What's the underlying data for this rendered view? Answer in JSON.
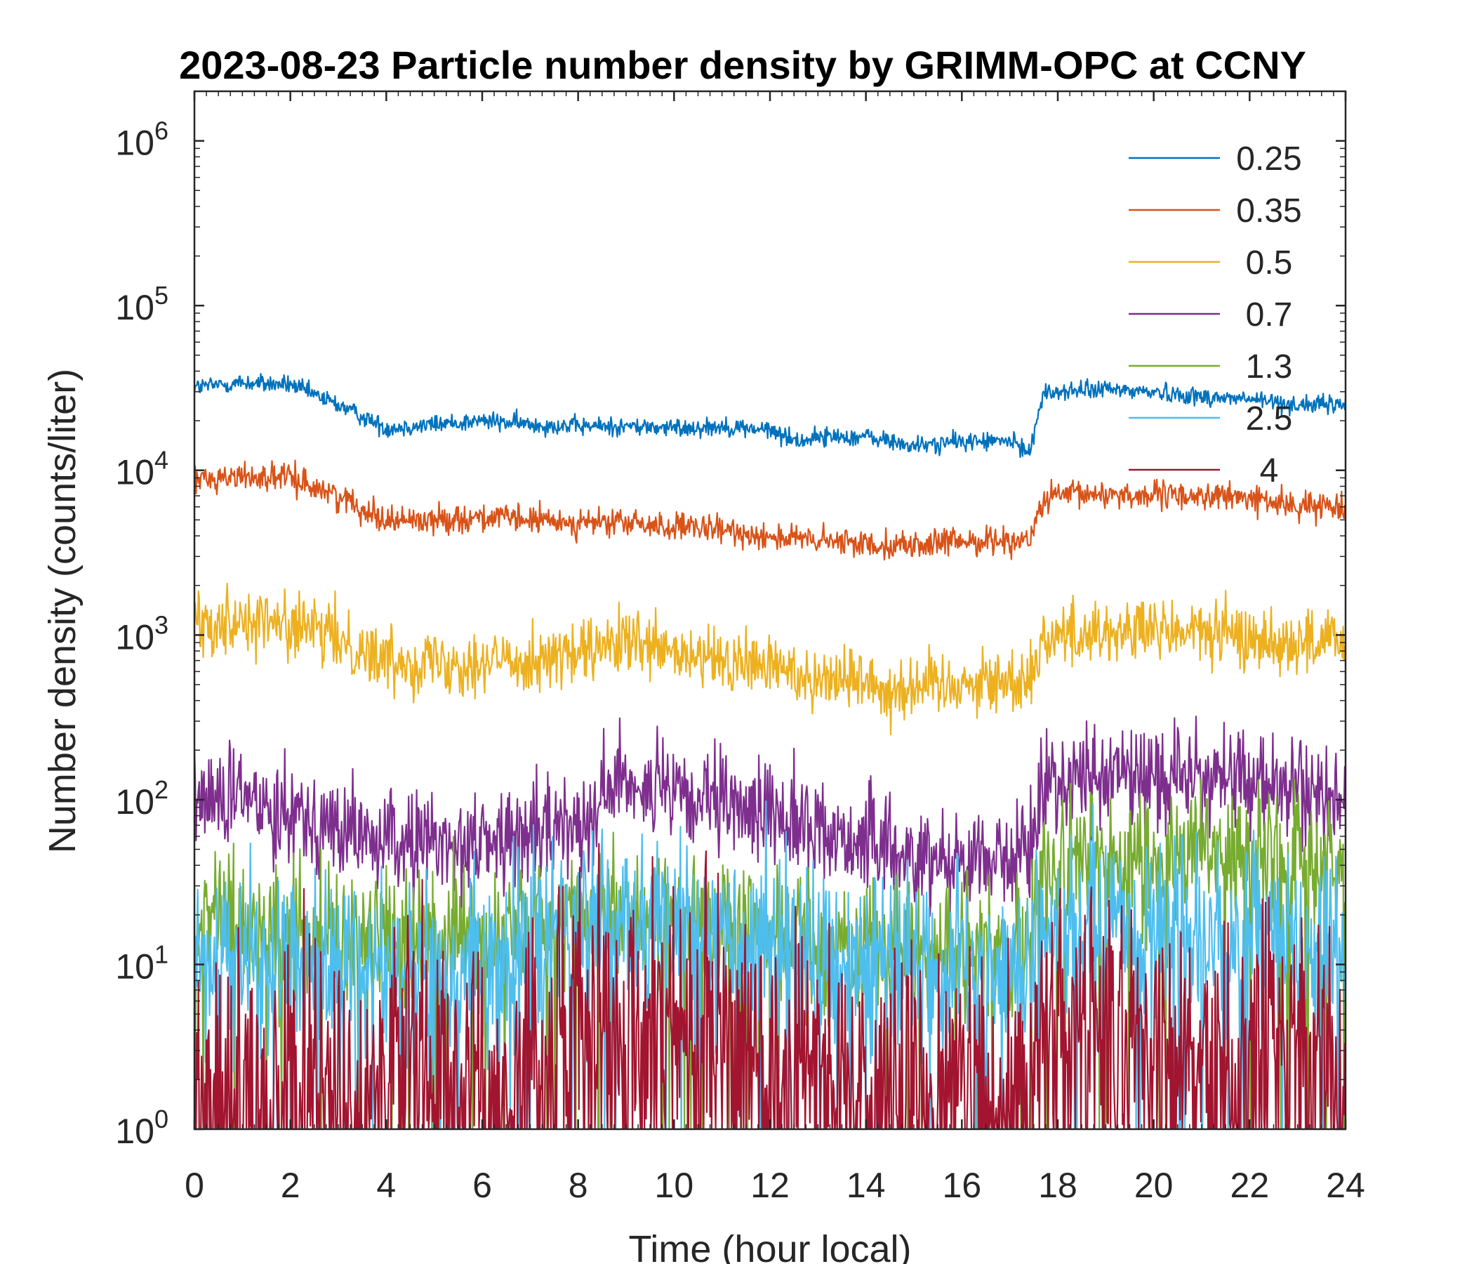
{
  "chart_data": {
    "type": "line",
    "title": "2023-08-23 Particle number density by GRIMM-OPC at CCNY",
    "xlabel": "Time (hour local)",
    "ylabel": "Number density (counts/liter)",
    "xlim": [
      0,
      24
    ],
    "ylim": [
      1,
      2000000
    ],
    "yscale": "log",
    "xticks": [
      0,
      2,
      4,
      6,
      8,
      10,
      12,
      14,
      16,
      18,
      20,
      22,
      24
    ],
    "xtick_labels": [
      "0",
      "2",
      "4",
      "6",
      "8",
      "10",
      "12",
      "14",
      "16",
      "18",
      "20",
      "22",
      "24"
    ],
    "yticks": [
      1,
      10,
      100,
      1000,
      10000,
      100000,
      1000000
    ],
    "ytick_exponents": [
      "0",
      "1",
      "2",
      "3",
      "4",
      "5",
      "6"
    ],
    "ytick_base": "10",
    "legend_position": "top-right",
    "series": [
      {
        "name": "0.25",
        "color": "#0072BD",
        "x": [
          0,
          1,
          2,
          3,
          4,
          5,
          6,
          7,
          8,
          9,
          10,
          11,
          12,
          12.6,
          13,
          14,
          15,
          16,
          17,
          17.4,
          17.7,
          18,
          19,
          20,
          21,
          22,
          23,
          24
        ],
        "values": [
          32000,
          34000,
          33000,
          25000,
          18000,
          19000,
          20000,
          19000,
          18500,
          18500,
          18000,
          18500,
          17500,
          15000,
          16000,
          16000,
          14000,
          15000,
          15000,
          13000,
          29000,
          30000,
          31000,
          30000,
          28000,
          27000,
          25000,
          25000
        ],
        "noise": 0.04
      },
      {
        "name": "0.35",
        "color": "#D95319",
        "x": [
          0,
          1,
          2,
          3,
          4,
          5,
          6,
          7,
          8,
          9,
          10,
          11,
          12,
          13,
          14,
          15,
          16,
          17,
          17.4,
          17.7,
          18,
          19,
          20,
          21,
          22,
          23,
          24
        ],
        "values": [
          8800,
          9200,
          9000,
          7000,
          5000,
          5000,
          5200,
          5000,
          4800,
          4800,
          4500,
          4300,
          4000,
          3700,
          3600,
          3500,
          3700,
          3800,
          3700,
          6500,
          7000,
          7200,
          7000,
          7000,
          6800,
          6000,
          6200
        ],
        "noise": 0.06
      },
      {
        "name": "0.5",
        "color": "#EDB120",
        "x": [
          0,
          1,
          2,
          3,
          4,
          5,
          6,
          7,
          8,
          9,
          10,
          11,
          12,
          13,
          14,
          14.5,
          15,
          16,
          17,
          17.4,
          17.7,
          18,
          19,
          20,
          21,
          22,
          23,
          24
        ],
        "values": [
          1200,
          1250,
          1150,
          950,
          700,
          700,
          680,
          720,
          750,
          900,
          750,
          680,
          650,
          550,
          550,
          450,
          500,
          520,
          520,
          550,
          950,
          1000,
          1050,
          1050,
          1050,
          950,
          900,
          900
        ],
        "noise": 0.14
      },
      {
        "name": "0.7",
        "color": "#7E2F8E",
        "x": [
          0,
          1,
          2,
          3,
          4,
          5,
          6,
          7,
          8,
          9,
          10,
          11,
          12,
          13,
          14,
          15,
          16,
          17,
          17.4,
          17.7,
          18,
          19,
          20,
          21,
          22,
          23,
          24
        ],
        "values": [
          100,
          100,
          90,
          65,
          55,
          55,
          55,
          60,
          75,
          140,
          100,
          90,
          85,
          65,
          55,
          45,
          45,
          45,
          45,
          130,
          130,
          140,
          140,
          140,
          130,
          110,
          100
        ],
        "noise": 0.22
      },
      {
        "name": "1.3",
        "color": "#77AC30",
        "x": [
          0,
          2,
          4,
          6,
          8,
          10,
          12,
          14,
          16,
          17.4,
          17.7,
          20,
          22,
          24
        ],
        "values": [
          18,
          16,
          14,
          15,
          20,
          22,
          16,
          13,
          13,
          13,
          40,
          45,
          45,
          35
        ],
        "noise": 0.3
      },
      {
        "name": "2.5",
        "color": "#4DBEEE",
        "x": [
          0,
          2,
          4,
          6,
          8,
          10,
          12,
          14,
          16,
          17.4,
          17.7,
          20,
          22,
          24
        ],
        "values": [
          10,
          10,
          9,
          10,
          16,
          18,
          14,
          10,
          9,
          9,
          14,
          16,
          15,
          12
        ],
        "noise": 0.4
      },
      {
        "name": "4",
        "color": "#A2142F",
        "x": [
          0,
          2,
          4,
          6,
          7.5,
          8,
          10,
          12,
          14,
          16,
          17.4,
          17.7,
          20,
          22,
          24
        ],
        "values": [
          2,
          2,
          2,
          2,
          3,
          5,
          5,
          3,
          2,
          2,
          2,
          3.5,
          3.5,
          3.5,
          2.5
        ],
        "noise": 0.6
      }
    ]
  }
}
